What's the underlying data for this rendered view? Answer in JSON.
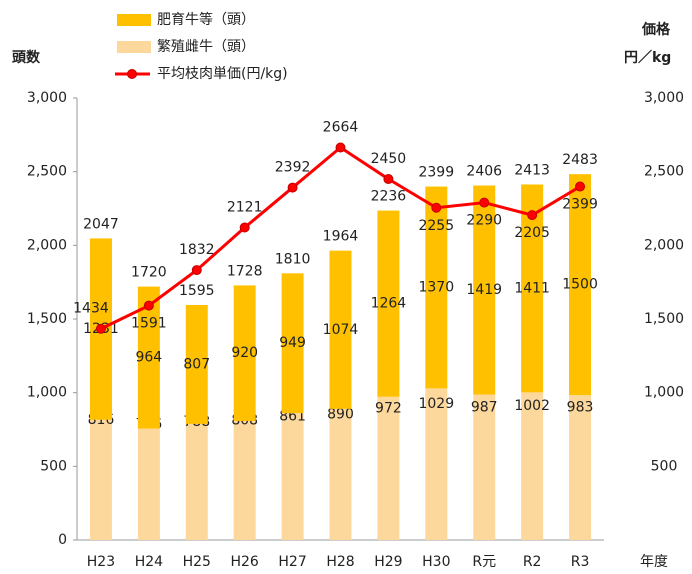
{
  "chart_data": {
    "type": "bar",
    "categories": [
      "H23",
      "H24",
      "H25",
      "H26",
      "H27",
      "H28",
      "H29",
      "H30",
      "R元",
      "R2",
      "R3"
    ],
    "series": [
      {
        "name": "繁殖雌牛（頭）",
        "color": "#fdd89c",
        "values": [
          816,
          756,
          788,
          808,
          861,
          890,
          972,
          1029,
          987,
          1002,
          983
        ]
      },
      {
        "name": "肥育牛等（頭）",
        "color": "#ffc000",
        "values": [
          1231,
          964,
          807,
          920,
          949,
          1074,
          1264,
          1370,
          1419,
          1411,
          1500
        ]
      },
      {
        "name": "平均枝肉単価(円/kg)",
        "type": "line",
        "axis": "y2",
        "color": "#ff0000",
        "values": [
          1434,
          1591,
          1832,
          2121,
          2392,
          2664,
          2450,
          2255,
          2290,
          2205,
          2399
        ]
      }
    ],
    "totals": [
      2047,
      1720,
      1595,
      1728,
      1810,
      1964,
      2236,
      2399,
      2406,
      2413,
      2483
    ],
    "ylabel": "頭数",
    "y2label": [
      "価格",
      "円／kg"
    ],
    "xlabel": "年度",
    "ylim": [
      0,
      3000
    ],
    "yticks": [
      0,
      500,
      {
        "value": 1000,
        "label": "1,000"
      },
      {
        "value": 1500,
        "label": "1,500"
      },
      {
        "value": 2000,
        "label": "2,000"
      },
      {
        "value": 2500,
        "label": "2,500"
      },
      {
        "value": 3000,
        "label": "3,000"
      }
    ],
    "y2lim": [
      0,
      3000
    ],
    "y2ticks": [
      500,
      {
        "value": 1000,
        "label": "1,000"
      },
      {
        "value": 1500,
        "label": "1,500"
      },
      {
        "value": 2000,
        "label": "2,000"
      },
      {
        "value": 2500,
        "label": "2,500"
      },
      {
        "value": 3000,
        "label": "3,000"
      }
    ],
    "grid": false
  }
}
